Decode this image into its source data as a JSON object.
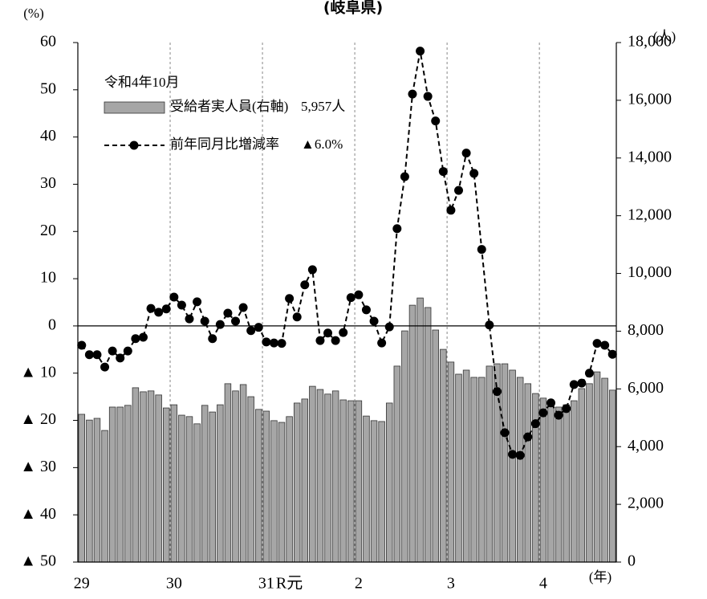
{
  "chart_data": {
    "type": "bar",
    "title": "(岐阜県)",
    "y_unit": "(%)",
    "y2_unit": "(人)",
    "x_label": "(年)",
    "legend_title": "令和4年10月",
    "categories": [
      "29",
      null,
      null,
      null,
      null,
      null,
      null,
      null,
      null,
      null,
      null,
      null,
      "30",
      null,
      null,
      null,
      null,
      null,
      null,
      null,
      null,
      null,
      null,
      null,
      "31",
      null,
      null,
      "R元",
      null,
      null,
      null,
      null,
      null,
      null,
      null,
      null,
      "2",
      null,
      null,
      null,
      null,
      null,
      null,
      null,
      null,
      null,
      null,
      null,
      "3",
      null,
      null,
      null,
      null,
      null,
      null,
      null,
      null,
      null,
      null,
      null,
      "4",
      null,
      null,
      null,
      null,
      null,
      null,
      null,
      null,
      null
    ],
    "series": [
      {
        "name": "受給者実人員(右軸)",
        "type": "bar",
        "axis": "y2",
        "color": "#a6a6a6",
        "latest_label": "5,957人",
        "values": [
          5120,
          4920,
          4980,
          4560,
          5370,
          5370,
          5430,
          6040,
          5900,
          5930,
          5790,
          5340,
          5450,
          5090,
          5040,
          4790,
          5430,
          5200,
          5450,
          6180,
          5930,
          6150,
          5730,
          5290,
          5230,
          4900,
          4840,
          5040,
          5510,
          5650,
          6090,
          5980,
          5820,
          5930,
          5620,
          5590,
          5590,
          5060,
          4900,
          4870,
          5510,
          6790,
          8010,
          8900,
          9150,
          8820,
          8040,
          7370,
          6930,
          6510,
          6650,
          6400,
          6400,
          6790,
          6870,
          6870,
          6650,
          6400,
          6180,
          5840,
          5680,
          5560,
          5370,
          5450,
          5590,
          6010,
          6180,
          6590,
          6370,
          5957
        ]
      },
      {
        "name": "前年同月比増減率",
        "type": "line",
        "color": "#000000",
        "latest_label": "▲6.0%",
        "values": [
          -4.1,
          -6.1,
          -6.1,
          -8.7,
          -5.3,
          -6.8,
          -5.3,
          -2.7,
          -2.4,
          3.7,
          2.9,
          3.6,
          6.1,
          4.4,
          1.5,
          5.1,
          1.0,
          -2.7,
          0.3,
          2.7,
          1.0,
          3.9,
          -1.0,
          -0.3,
          -3.4,
          -3.6,
          -3.7,
          5.8,
          1.9,
          8.7,
          11.9,
          -3.1,
          -1.5,
          -3.1,
          -1.4,
          6.0,
          6.6,
          3.4,
          1.0,
          -3.6,
          -0.2,
          20.6,
          31.6,
          49.1,
          58.2,
          48.6,
          43.4,
          32.7,
          24.5,
          28.7,
          36.6,
          32.3,
          16.2,
          0.2,
          -13.9,
          -22.6,
          -27.2,
          -27.4,
          -23.5,
          -20.7,
          -18.4,
          -16.3,
          -18.9,
          -17.5,
          -12.4,
          -12.1,
          -10.0,
          -3.7,
          -4.1,
          -6.0
        ]
      }
    ],
    "ylim": [
      -50,
      60
    ],
    "yticks": [
      {
        "value": -50,
        "label": "▲ 50"
      },
      {
        "value": -40,
        "label": "▲ 40"
      },
      {
        "value": -30,
        "label": "▲ 30"
      },
      {
        "value": -20,
        "label": "▲ 20"
      },
      {
        "value": -10,
        "label": "▲ 10"
      },
      0,
      10,
      20,
      30,
      40,
      50,
      60
    ],
    "y2lim": [
      0,
      18000
    ],
    "y2ticks": [
      0,
      {
        "value": 2000,
        "label": "2,000"
      },
      {
        "value": 4000,
        "label": "4,000"
      },
      {
        "value": 6000,
        "label": "6,000"
      },
      {
        "value": 8000,
        "label": "8,000"
      },
      {
        "value": 10000,
        "label": "10,000"
      },
      {
        "value": 12000,
        "label": "12,000"
      },
      {
        "value": 14000,
        "label": "14,000"
      },
      {
        "value": 16000,
        "label": "16,000"
      },
      {
        "value": 18000,
        "label": "18,000"
      }
    ]
  }
}
